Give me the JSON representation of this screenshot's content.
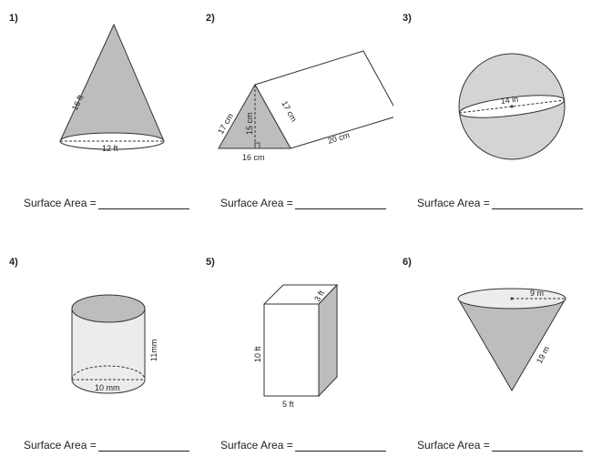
{
  "problems": [
    {
      "number": "1)",
      "shape": "cone",
      "slant": "16 ft",
      "diameter": "12 ft"
    },
    {
      "number": "2)",
      "shape": "triangular-prism",
      "side_left": "17 cm",
      "height": "15 cm",
      "side_right": "17 cm",
      "base": "16 cm",
      "length": "20 cm"
    },
    {
      "number": "3)",
      "shape": "sphere",
      "diameter": "14 in"
    },
    {
      "number": "4)",
      "shape": "cylinder",
      "height": "11mm",
      "diameter": "10 mm"
    },
    {
      "number": "5)",
      "shape": "rectangular-prism",
      "height": "10 ft",
      "depth": "3 ft",
      "width": "5 ft"
    },
    {
      "number": "6)",
      "shape": "cone",
      "radius": "9 m",
      "slant": "19 m"
    }
  ],
  "answer_label": "Surface Area ="
}
